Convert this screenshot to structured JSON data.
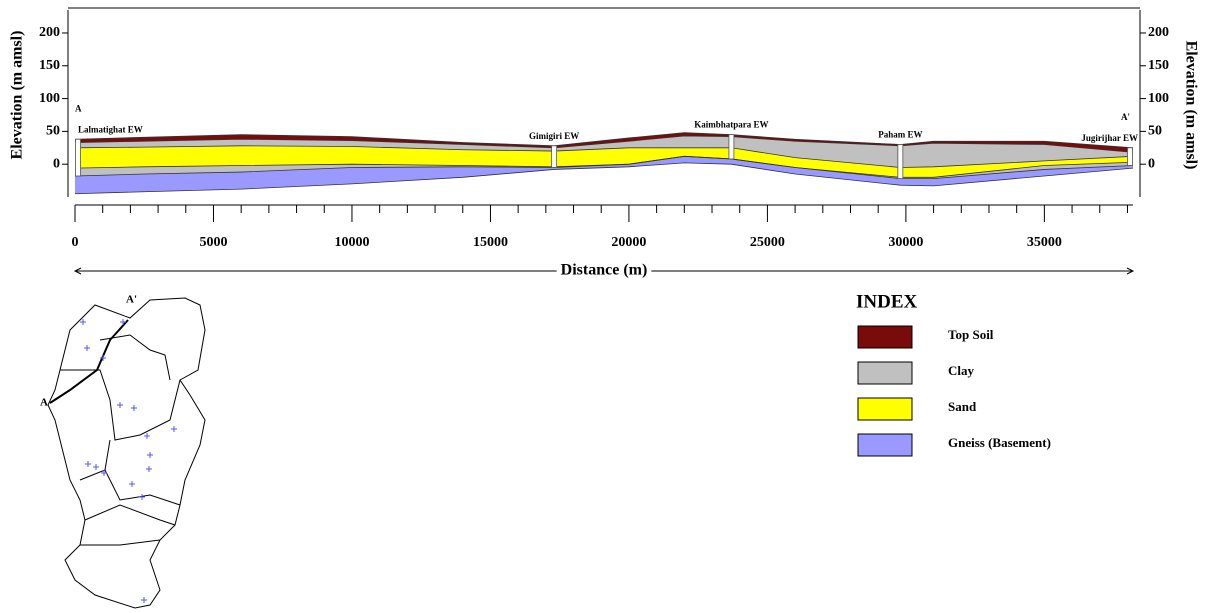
{
  "chart_data": {
    "type": "cross_section",
    "x_label": "Distance (m)",
    "y_label": "Elevation (m amsl)",
    "y2_label": "Elevation (m amsl)",
    "section_start_label": "A",
    "section_end_label": "A'",
    "legend_title": "INDEX",
    "x": [
      0,
      2500,
      6000,
      10000,
      14000,
      17300,
      20000,
      22000,
      23700,
      26000,
      29800,
      31000,
      35000,
      38200
    ],
    "xlim": [
      0,
      38200
    ],
    "xticks": [
      0,
      5000,
      10000,
      15000,
      20000,
      25000,
      30000,
      35000
    ],
    "ylim": [
      -50,
      235
    ],
    "yticks": [
      0,
      50,
      100,
      150,
      200
    ],
    "y2lim": [
      -50,
      235
    ],
    "y2ticks": [
      0,
      50,
      100,
      150,
      200
    ],
    "series": [
      {
        "name": "Top Soil",
        "color": "#7a0b0b",
        "values": [
          38,
          41,
          45,
          42,
          33,
          28,
          40,
          48,
          45,
          38,
          30,
          35,
          35,
          25
        ]
      },
      {
        "name": "Clay",
        "color": "#c0c0c0",
        "values": [
          33,
          35,
          38,
          36,
          30,
          25,
          35,
          43,
          42,
          35,
          28,
          32,
          30,
          18
        ]
      },
      {
        "name": "Sand",
        "color": "#ffff00",
        "values": [
          25,
          26,
          28,
          27,
          22,
          20,
          25,
          25,
          25,
          10,
          -5,
          -4,
          5,
          12
        ]
      },
      {
        "name": "Gneiss (Basement)",
        "color": "#9999ff",
        "values": [
          -18,
          -15,
          -12,
          -5,
          -4,
          -5,
          0,
          12,
          8,
          -5,
          -22,
          -22,
          -8,
          -2
        ]
      }
    ],
    "lower_clay_top": [
      -6,
      -4,
      -2,
      0,
      -2,
      -4,
      0,
      12,
      8,
      -5,
      -20,
      -20,
      -2,
      3
    ],
    "base": [
      -45,
      -42,
      -38,
      -30,
      -20,
      -8,
      -4,
      2,
      0,
      -15,
      -32,
      -33,
      -18,
      -6
    ],
    "wells": [
      {
        "label": "Lalmatighat EW",
        "x": 0
      },
      {
        "label": "Gimigiri EW",
        "x": 17300
      },
      {
        "label": "Kaimbhatpara EW",
        "x": 23700
      },
      {
        "label": "Paham EW",
        "x": 29800
      },
      {
        "label": "Jugirijhar EW",
        "x": 38200
      }
    ]
  },
  "map": {
    "start_label": "A",
    "end_label": "A'"
  }
}
